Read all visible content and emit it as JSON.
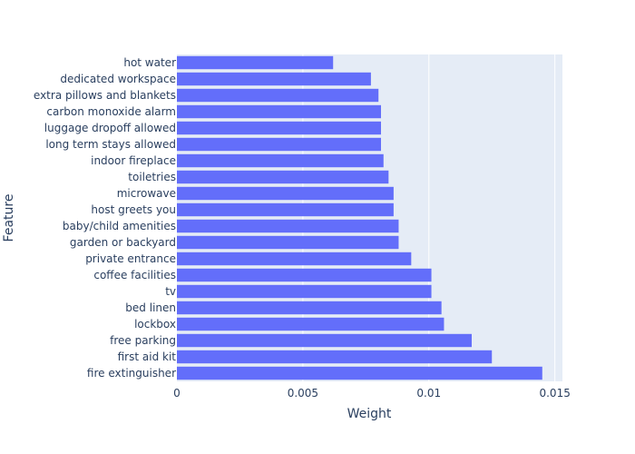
{
  "chart_data": {
    "type": "bar",
    "orientation": "horizontal",
    "title": "",
    "xlabel": "Weight",
    "ylabel": "Feature",
    "xlim": [
      0,
      0.0153
    ],
    "x_ticks": [
      0,
      0.005,
      0.01,
      0.015
    ],
    "x_tick_labels": [
      "0",
      "0.005",
      "0.01",
      "0.015"
    ],
    "grid": true,
    "bar_color": "#636efa",
    "plot_bg": "#e5ecf6",
    "categories": [
      "hot water",
      "dedicated workspace",
      "extra pillows and blankets",
      "carbon monoxide alarm",
      "luggage dropoff allowed",
      "long term stays allowed",
      "indoor fireplace",
      "toiletries",
      "microwave",
      "host greets you",
      "baby/child amenities",
      "garden or backyard",
      "private entrance",
      "coffee facilities",
      "tv",
      "bed linen",
      "lockbox",
      "free parking",
      "first aid kit",
      "fire extinguisher"
    ],
    "values": [
      0.0062,
      0.0077,
      0.008,
      0.0081,
      0.0081,
      0.0081,
      0.0082,
      0.0084,
      0.0086,
      0.0086,
      0.0088,
      0.0088,
      0.0093,
      0.0101,
      0.0101,
      0.0105,
      0.0106,
      0.0117,
      0.0125,
      0.0145
    ]
  }
}
